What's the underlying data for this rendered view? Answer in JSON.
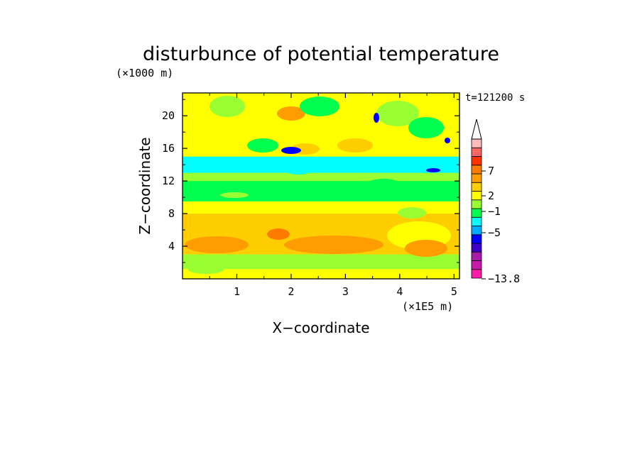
{
  "chart_data": {
    "type": "heatmap",
    "title": "disturbunce of potential temperature",
    "time_label": "t=121200 s",
    "xlabel": "X−coordinate",
    "ylabel": "Z−coordinate",
    "x_unit": "(×1E5 m)",
    "y_unit": "(×1000 m)",
    "xlim": [
      0,
      5.1
    ],
    "ylim": [
      0,
      22.8
    ],
    "xticks": [
      1,
      2,
      3,
      4,
      5
    ],
    "yticks": [
      4,
      8,
      12,
      16,
      20
    ],
    "colorbar": {
      "labels": [
        {
          "text": "7",
          "value": 7
        },
        {
          "text": "2",
          "value": 2
        },
        {
          "text": "−1",
          "value": -1
        },
        {
          "text": "−5",
          "value": -5
        },
        {
          "text": "−13.8",
          "value": -13.8
        }
      ],
      "colors": [
        "#ff1ca8",
        "#c61ca8",
        "#a81ca8",
        "#3c00c8",
        "#0000ff",
        "#00aaff",
        "#00ffff",
        "#00ff4f",
        "#99ff33",
        "#ffff00",
        "#ffce00",
        "#ff9c00",
        "#ff7b00",
        "#ff3300",
        "#ff6666",
        "#ffbbbb"
      ],
      "extend": "max"
    },
    "layers": [
      {
        "z_range": [
          0,
          1.2
        ],
        "level": 0.5,
        "color": "#ffff00"
      },
      {
        "z_range": [
          1.2,
          3.0
        ],
        "level": 0.5,
        "color": "#99ff33"
      },
      {
        "z_range": [
          3.0,
          8.0
        ],
        "level": 1.5,
        "color": "#ffce00"
      },
      {
        "z_range": [
          8.0,
          9.5
        ],
        "level": 0.5,
        "color": "#ffff00"
      },
      {
        "z_range": [
          9.5,
          12.0
        ],
        "level": -0.5,
        "color": "#00ff4f"
      },
      {
        "z_range": [
          12.0,
          13.0
        ],
        "level": -0.5,
        "color": "#99ff33"
      },
      {
        "z_range": [
          13.0,
          15.0
        ],
        "level": -1.5,
        "color": "#00ffff"
      },
      {
        "z_range": [
          15.0,
          22.8
        ],
        "level": 0.5,
        "color": "#ffff00"
      }
    ]
  }
}
